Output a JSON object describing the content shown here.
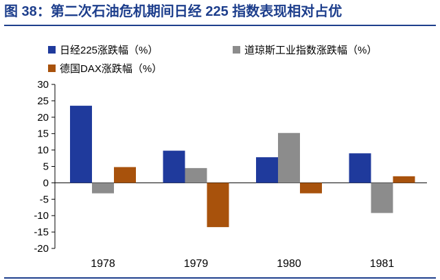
{
  "header": {
    "title": "图 38：第二次石油危机期间日经 225 指数表现相对占优"
  },
  "chart_data": {
    "type": "bar",
    "categories": [
      "1978",
      "1979",
      "1980",
      "1981"
    ],
    "series": [
      {
        "name": "日经225涨跌幅（%）",
        "color": "#1f3a9c",
        "values": [
          23.5,
          9.8,
          7.8,
          9.0
        ]
      },
      {
        "name": "道琼斯工业指数涨跌幅（%）",
        "color": "#8c8c8c",
        "values": [
          -3.2,
          4.5,
          15.2,
          -9.2
        ]
      },
      {
        "name": "德国DAX涨跌幅（%）",
        "color": "#a8520c",
        "values": [
          4.8,
          -13.5,
          -3.2,
          2.0
        ]
      }
    ],
    "yticks": [
      30,
      25,
      20,
      15,
      10,
      5,
      0,
      -5,
      -10,
      -15,
      -20
    ],
    "ylim": [
      -20,
      30
    ],
    "legend_position": "top"
  }
}
